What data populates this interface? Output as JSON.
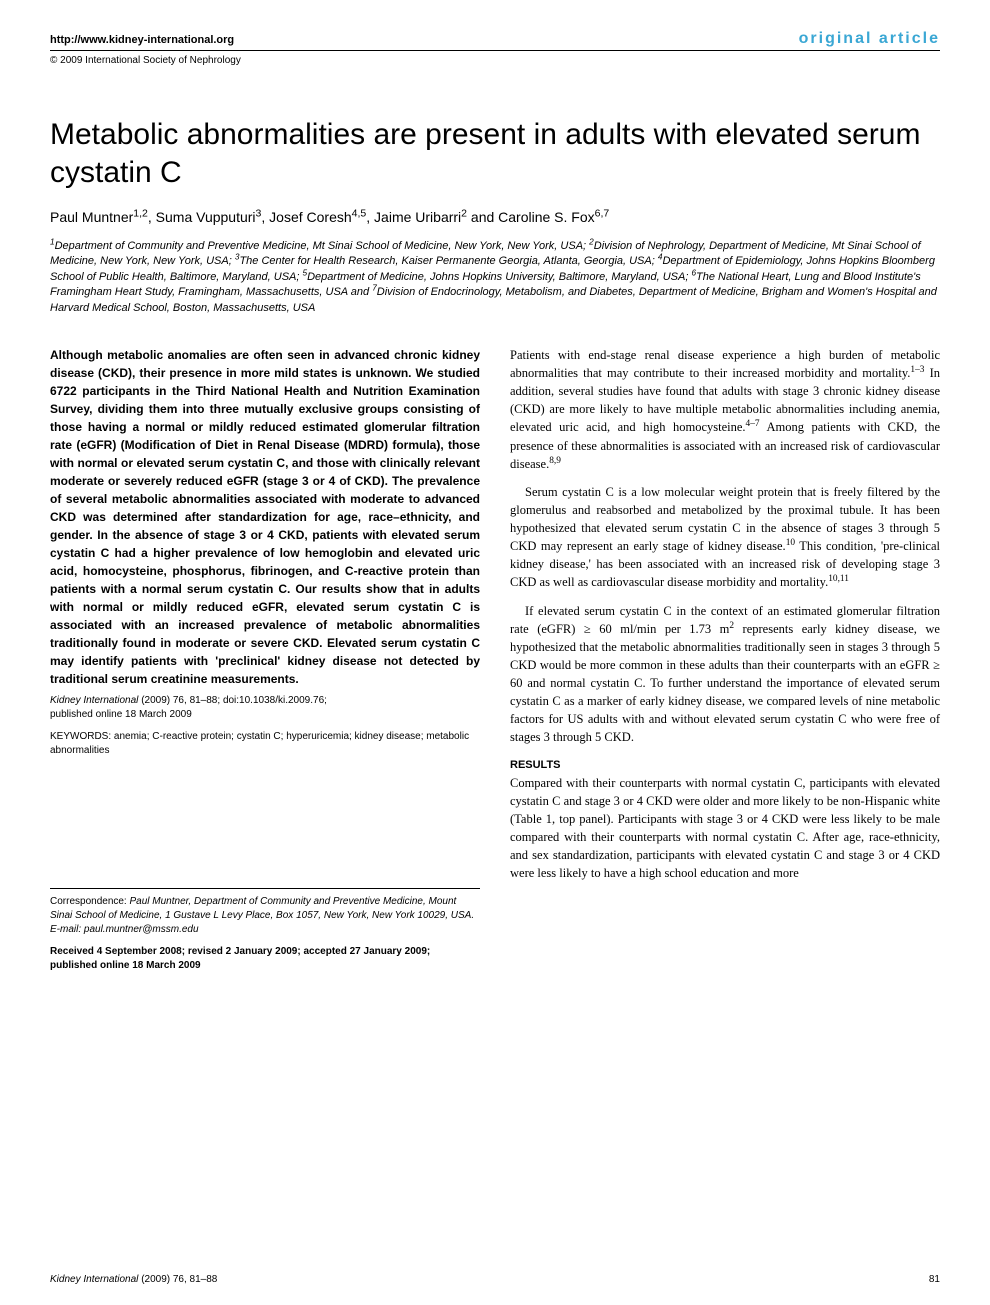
{
  "header": {
    "url": "http://www.kidney-international.org",
    "article_type": "original article",
    "copyright": "© 2009 International Society of Nephrology"
  },
  "title": "Metabolic abnormalities are present in adults with elevated serum cystatin C",
  "authors_html": "Paul Muntner<sup>1,2</sup>, Suma Vupputuri<sup>3</sup>, Josef Coresh<sup>4,5</sup>, Jaime Uribarri<sup>2</sup> and Caroline S. Fox<sup>6,7</sup>",
  "affiliations_html": "<sup>1</sup>Department of Community and Preventive Medicine, Mt Sinai School of Medicine, New York, New York, USA; <sup>2</sup>Division of Nephrology, Department of Medicine, Mt Sinai School of Medicine, New York, New York, USA; <sup>3</sup>The Center for Health Research, Kaiser Permanente Georgia, Atlanta, Georgia, USA; <sup>4</sup>Department of Epidemiology, Johns Hopkins Bloomberg School of Public Health, Baltimore, Maryland, USA; <sup>5</sup>Department of Medicine, Johns Hopkins University, Baltimore, Maryland, USA; <sup>6</sup>The National Heart, Lung and Blood Institute's Framingham Heart Study, Framingham, Massachusetts, USA and <sup>7</sup>Division of Endocrinology, Metabolism, and Diabetes, Department of Medicine, Brigham and Women's Hospital and Harvard Medical School, Boston, Massachusetts, USA",
  "abstract": "Although metabolic anomalies are often seen in advanced chronic kidney disease (CKD), their presence in more mild states is unknown. We studied 6722 participants in the Third National Health and Nutrition Examination Survey, dividing them into three mutually exclusive groups consisting of those having a normal or mildly reduced estimated glomerular filtration rate (eGFR) (Modification of Diet in Renal Disease (MDRD) formula), those with normal or elevated serum cystatin C, and those with clinically relevant moderate or severely reduced eGFR (stage 3 or 4 of CKD). The prevalence of several metabolic abnormalities associated with moderate to advanced CKD was determined after standardization for age, race–ethnicity, and gender. In the absence of stage 3 or 4 CKD, patients with elevated serum cystatin C had a higher prevalence of low hemoglobin and elevated uric acid, homocysteine, phosphorus, fibrinogen, and C-reactive protein than patients with a normal serum cystatin C. Our results show that in adults with normal or mildly reduced eGFR, elevated serum cystatin C is associated with an increased prevalence of metabolic abnormalities traditionally found in moderate or severe CKD. Elevated serum cystatin C may identify patients with 'preclinical' kidney disease not detected by traditional serum creatinine measurements.",
  "citation": {
    "journal": "Kidney International",
    "year_vol": "(2009) 76,",
    "pages": "81–88;",
    "doi": "doi:10.1038/ki.2009.76;",
    "pub_online": "published online 18 March 2009"
  },
  "keywords": {
    "label": "KEYWORDS:",
    "text": "anemia; C-reactive protein; cystatin C; hyperuricemia; kidney disease; metabolic abnormalities"
  },
  "body": {
    "p1_html": "Patients with end-stage renal disease experience a high burden of metabolic abnormalities that may contribute to their increased morbidity and mortality.<sup>1–3</sup> In addition, several studies have found that adults with stage 3 chronic kidney disease (CKD) are more likely to have multiple metabolic abnormalities including anemia, elevated uric acid, and high homocysteine.<sup>4–7</sup> Among patients with CKD, the presence of these abnormalities is associated with an increased risk of cardiovascular disease.<sup>8,9</sup>",
    "p2_html": "Serum cystatin C is a low molecular weight protein that is freely filtered by the glomerulus and reabsorbed and metabolized by the proximal tubule. It has been hypothesized that elevated serum cystatin C in the absence of stages 3 through 5 CKD may represent an early stage of kidney disease.<sup>10</sup> This condition, 'pre-clinical kidney disease,' has been associated with an increased risk of developing stage 3 CKD as well as cardiovascular disease morbidity and mortality.<sup>10,11</sup>",
    "p3_html": "If elevated serum cystatin C in the context of an estimated glomerular filtration rate (eGFR) ≥ 60 ml/min per 1.73 m<sup>2</sup> represents early kidney disease, we hypothesized that the metabolic abnormalities traditionally seen in stages 3 through 5 CKD would be more common in these adults than their counterparts with an eGFR ≥ 60 and normal cystatin C. To further understand the importance of elevated serum cystatin C as a marker of early kidney disease, we compared levels of nine metabolic factors for US adults with and without elevated serum cystatin C who were free of stages 3 through 5 CKD.",
    "results_head": "RESULTS",
    "p4": "Compared with their counterparts with normal cystatin C, participants with elevated cystatin C and stage 3 or 4 CKD were older and more likely to be non-Hispanic white (Table 1, top panel). Participants with stage 3 or 4 CKD were less likely to be male compared with their counterparts with normal cystatin C. After age, race-ethnicity, and sex standardization, participants with elevated cystatin C and stage 3 or 4 CKD were less likely to have a high school education and more"
  },
  "correspondence": {
    "label": "Correspondence:",
    "text": "Paul Muntner, Department of Community and Preventive Medicine, Mount Sinai School of Medicine, 1 Gustave L Levy Place, Box 1057, New York, New York 10029, USA. E-mail: paul.muntner@mssm.edu"
  },
  "received": "Received 4 September 2008; revised 2 January 2009; accepted 27 January 2009; published online 18 March 2009",
  "footer": {
    "journal": "Kidney International",
    "issue": "(2009) 76, 81–88",
    "page": "81"
  },
  "colors": {
    "accent": "#3aa7d4",
    "text": "#000000",
    "background": "#ffffff"
  }
}
